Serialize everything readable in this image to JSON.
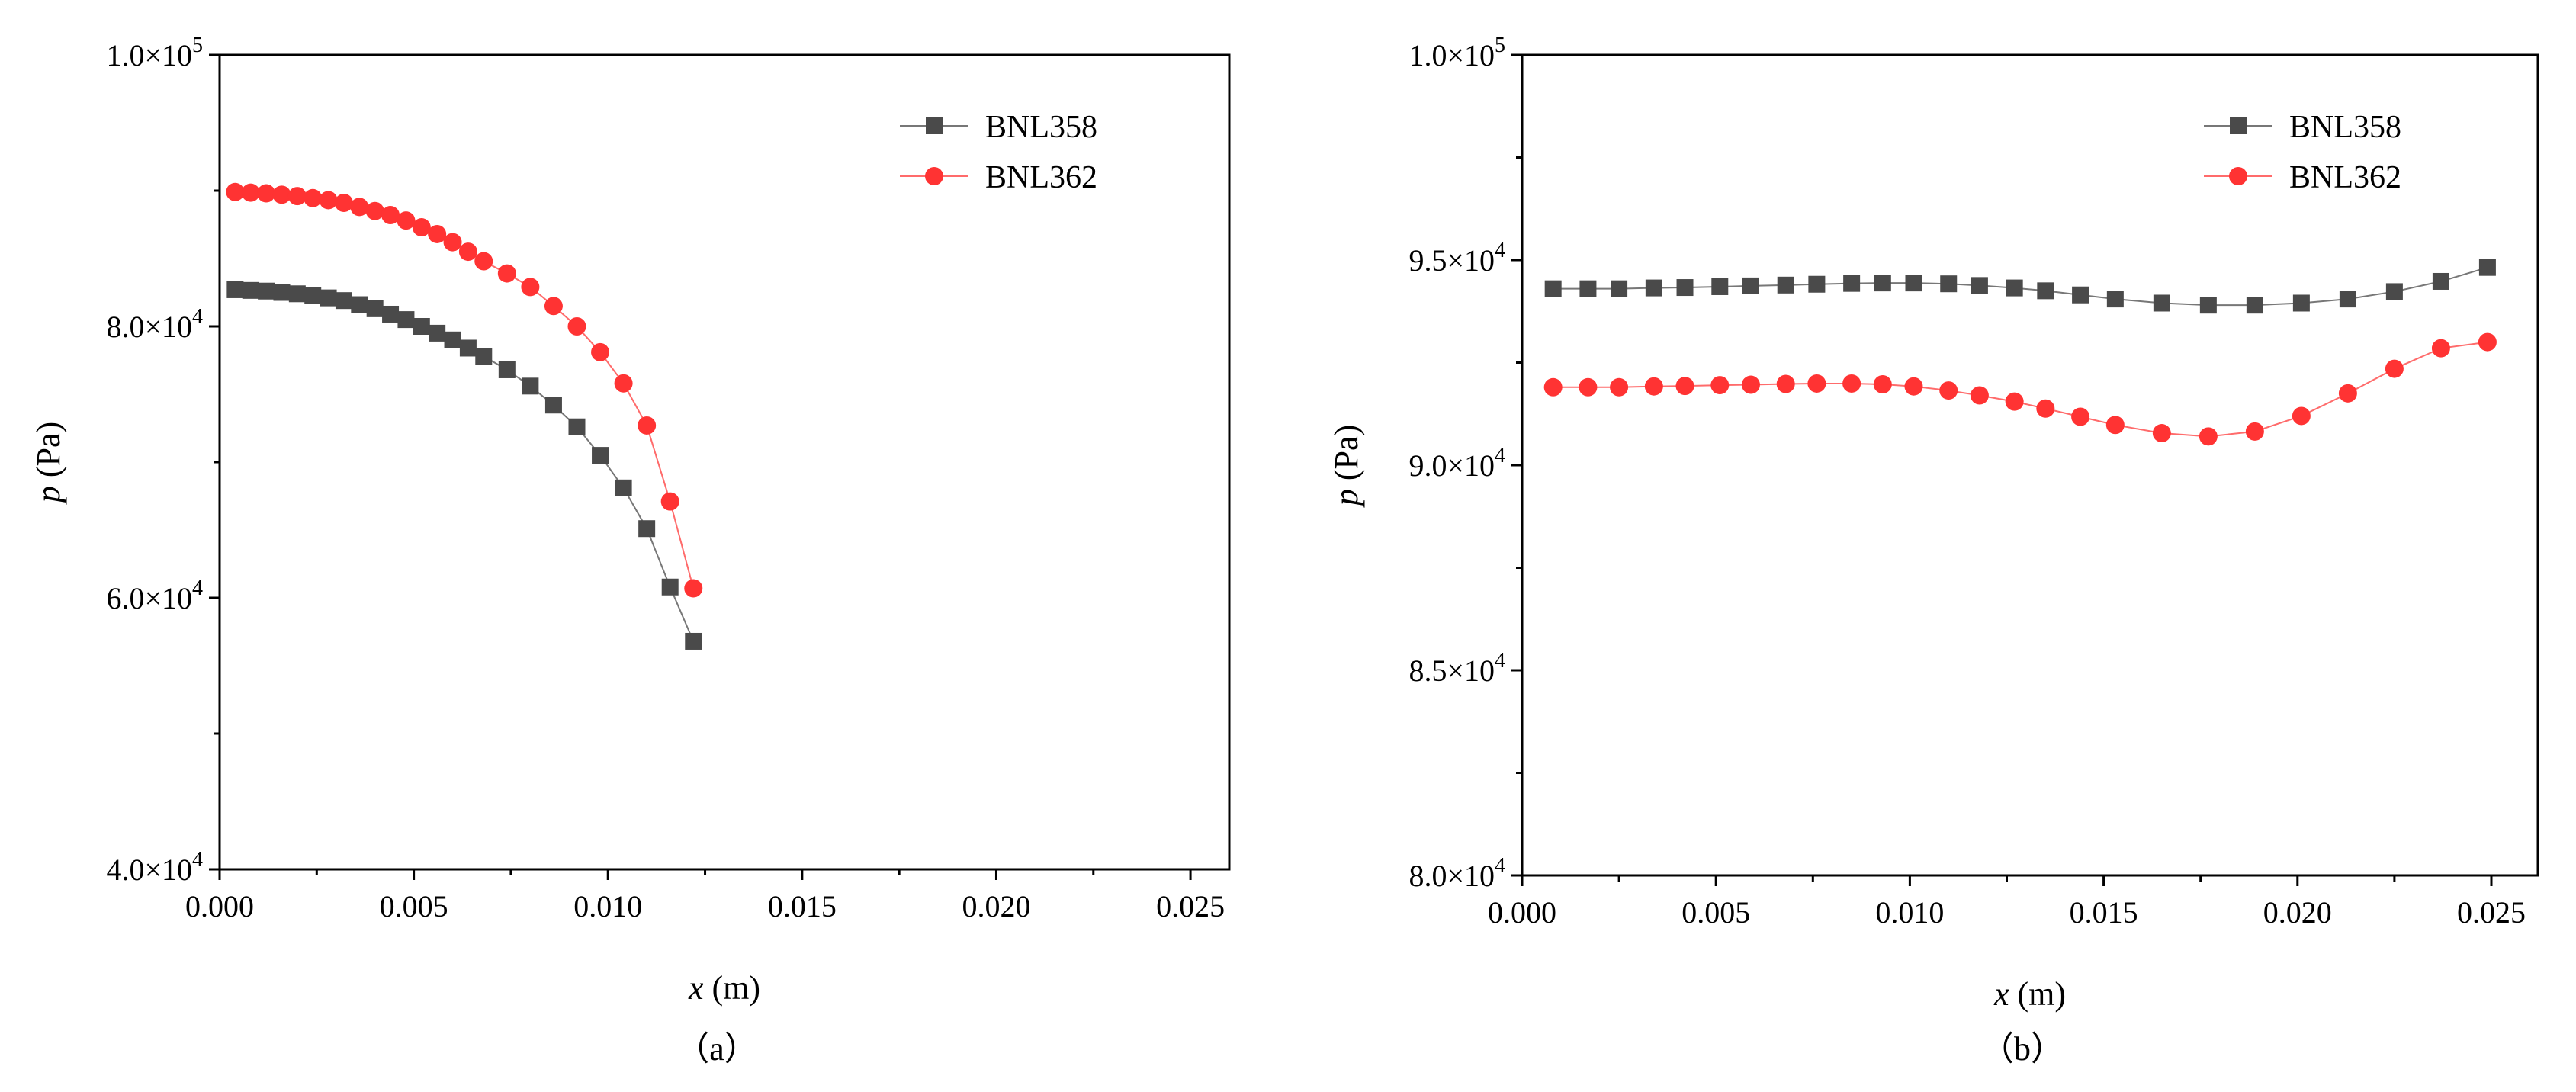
{
  "figure": {
    "panel_captions": [
      "（a）",
      "（b）"
    ]
  },
  "chart_data": [
    {
      "type": "line",
      "panel": "（a）",
      "xlabel": "x (m)",
      "ylabel": "p (Pa)",
      "xlim": [
        0.0,
        0.026
      ],
      "ylim": [
        40000,
        100000
      ],
      "xticks": [
        0.0,
        0.005,
        0.01,
        0.015,
        0.02,
        0.025
      ],
      "xtick_labels": [
        "0.000",
        "0.005",
        "0.010",
        "0.015",
        "0.020",
        "0.025"
      ],
      "yticks": [
        40000,
        60000,
        80000,
        100000
      ],
      "ytick_labels": [
        "4.0×10^4",
        "6.0×10^4",
        "8.0×10^4",
        "1.0×10^5"
      ],
      "legend_position": "top-right",
      "grid": false,
      "series": [
        {
          "name": "BNL358",
          "color": "#4a4a4a",
          "marker": "square",
          "x": [
            0.0004,
            0.0008,
            0.0012,
            0.0016,
            0.002,
            0.0024,
            0.0028,
            0.0032,
            0.0036,
            0.004,
            0.0044,
            0.0048,
            0.0052,
            0.0056,
            0.006,
            0.0064,
            0.0068,
            0.0074,
            0.008,
            0.0086,
            0.0092,
            0.0098,
            0.0104,
            0.011,
            0.0116,
            0.0122
          ],
          "y": [
            82700,
            82650,
            82600,
            82500,
            82400,
            82300,
            82100,
            81900,
            81600,
            81300,
            80900,
            80500,
            80000,
            79500,
            79000,
            78400,
            77800,
            76800,
            75600,
            74200,
            72600,
            70500,
            68100,
            65100,
            60800,
            56800
          ]
        },
        {
          "name": "BNL362",
          "color": "#ff3333",
          "marker": "circle",
          "x": [
            0.0004,
            0.0008,
            0.0012,
            0.0016,
            0.002,
            0.0024,
            0.0028,
            0.0032,
            0.0036,
            0.004,
            0.0044,
            0.0048,
            0.0052,
            0.0056,
            0.006,
            0.0064,
            0.0068,
            0.0074,
            0.008,
            0.0086,
            0.0092,
            0.0098,
            0.0104,
            0.011,
            0.0116,
            0.0122
          ],
          "y": [
            89900,
            89850,
            89800,
            89700,
            89600,
            89450,
            89300,
            89100,
            88800,
            88500,
            88200,
            87800,
            87300,
            86800,
            86200,
            85500,
            84800,
            83900,
            82900,
            81500,
            80000,
            78100,
            75800,
            72700,
            67100,
            60700
          ]
        }
      ]
    },
    {
      "type": "line",
      "panel": "（b）",
      "xlabel": "x (m)",
      "ylabel": "p (Pa)",
      "xlim": [
        0.0,
        0.0262
      ],
      "ylim": [
        80000,
        100000
      ],
      "xticks": [
        0.0,
        0.005,
        0.01,
        0.015,
        0.02,
        0.025
      ],
      "xtick_labels": [
        "0.000",
        "0.005",
        "0.010",
        "0.015",
        "0.020",
        "0.025"
      ],
      "yticks": [
        80000,
        85000,
        90000,
        95000,
        100000
      ],
      "ytick_labels": [
        "8.0×10^4",
        "8.5×10^4",
        "9.0×10^4",
        "9.5×10^4",
        "1.0×10^5"
      ],
      "legend_position": "top-right",
      "grid": false,
      "series": [
        {
          "name": "BNL358",
          "color": "#4a4a4a",
          "marker": "square",
          "x": [
            0.0008,
            0.0017,
            0.0025,
            0.0034,
            0.0042,
            0.0051,
            0.0059,
            0.0068,
            0.0076,
            0.0085,
            0.0093,
            0.0101,
            0.011,
            0.0118,
            0.0127,
            0.0135,
            0.0144,
            0.0153,
            0.0165,
            0.0177,
            0.0189,
            0.0201,
            0.0213,
            0.0225,
            0.0237,
            0.0249
          ],
          "y": [
            94300,
            94300,
            94300,
            94320,
            94330,
            94350,
            94370,
            94390,
            94410,
            94430,
            94440,
            94440,
            94420,
            94380,
            94320,
            94250,
            94150,
            94050,
            93950,
            93900,
            93900,
            93950,
            94050,
            94230,
            94480,
            94820
          ]
        },
        {
          "name": "BNL362",
          "color": "#ff3333",
          "marker": "circle",
          "x": [
            0.0008,
            0.0017,
            0.0025,
            0.0034,
            0.0042,
            0.0051,
            0.0059,
            0.0068,
            0.0076,
            0.0085,
            0.0093,
            0.0101,
            0.011,
            0.0118,
            0.0127,
            0.0135,
            0.0144,
            0.0153,
            0.0165,
            0.0177,
            0.0189,
            0.0201,
            0.0213,
            0.0225,
            0.0237,
            0.0249
          ],
          "y": [
            91900,
            91900,
            91900,
            91920,
            91930,
            91950,
            91960,
            91980,
            91990,
            91990,
            91970,
            91920,
            91820,
            91700,
            91550,
            91380,
            91180,
            90980,
            90780,
            90700,
            90820,
            91200,
            91750,
            92350,
            92850,
            93000
          ]
        }
      ]
    }
  ]
}
